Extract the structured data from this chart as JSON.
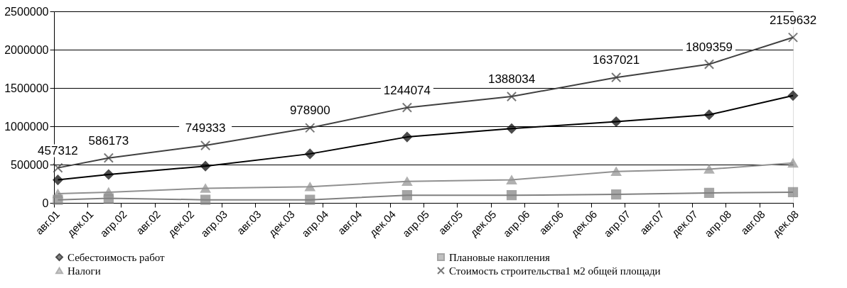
{
  "chart_data": {
    "type": "line",
    "x": [
      "2001-08-15",
      "2002-02-15",
      "2003-02-01",
      "2004-02-15",
      "2005-02-01",
      "2006-02-15",
      "2007-03-01",
      "2008-02-01",
      "2008-12-01"
    ],
    "series": [
      {
        "name": "Себестоимость работ",
        "color": "#000000",
        "marker": "diamond",
        "values": [
          300000,
          370000,
          480000,
          640000,
          860000,
          970000,
          1060000,
          1150000,
          1400000
        ]
      },
      {
        "name": "Плановые накопления",
        "color": "#808080",
        "marker": "square",
        "values": [
          40000,
          60000,
          40000,
          40000,
          100000,
          100000,
          110000,
          130000,
          140000
        ]
      },
      {
        "name": "Налоги",
        "color": "#909090",
        "marker": "triangle",
        "values": [
          120000,
          140000,
          190000,
          210000,
          280000,
          300000,
          410000,
          440000,
          520000
        ]
      },
      {
        "name": "Стоимость  строительства1 м2 общей площади",
        "color": "#404040",
        "marker": "cross",
        "values": [
          457312,
          586173,
          749333,
          978900,
          1244074,
          1388034,
          1637021,
          1809359,
          2159632
        ],
        "value_labels": [
          "457312",
          "586173",
          "749333",
          "978900",
          "1244074",
          "1388034",
          "1637021",
          "1809359",
          "2159632"
        ]
      }
    ],
    "ylim": [
      0,
      2500000
    ],
    "yticks": [
      0,
      500000,
      1000000,
      1500000,
      2000000,
      2500000
    ],
    "xlim": [
      "2001-08-01",
      "2008-12-01"
    ],
    "xticks": [
      {
        "value": "2001-08-01",
        "label": "авг.01"
      },
      {
        "value": "2001-12-01",
        "label": "дек.01"
      },
      {
        "value": "2002-04-01",
        "label": "апр.02"
      },
      {
        "value": "2002-08-01",
        "label": "авг.02"
      },
      {
        "value": "2002-12-01",
        "label": "дек.02"
      },
      {
        "value": "2003-04-01",
        "label": "апр.03"
      },
      {
        "value": "2003-08-01",
        "label": "авг.03"
      },
      {
        "value": "2003-12-01",
        "label": "дек.03"
      },
      {
        "value": "2004-04-01",
        "label": "апр.04"
      },
      {
        "value": "2004-08-01",
        "label": "авг.04"
      },
      {
        "value": "2004-12-01",
        "label": "дек.04"
      },
      {
        "value": "2005-04-01",
        "label": "апр.05"
      },
      {
        "value": "2005-08-01",
        "label": "авг.05"
      },
      {
        "value": "2005-12-01",
        "label": "дек.05"
      },
      {
        "value": "2006-04-01",
        "label": "апр.06"
      },
      {
        "value": "2006-08-01",
        "label": "авг.06"
      },
      {
        "value": "2006-12-01",
        "label": "дек.06"
      },
      {
        "value": "2007-04-01",
        "label": "апр.07"
      },
      {
        "value": "2007-08-01",
        "label": "авг.07"
      },
      {
        "value": "2007-12-01",
        "label": "дек.07"
      },
      {
        "value": "2008-04-01",
        "label": "апр.08"
      },
      {
        "value": "2008-08-01",
        "label": "авг.08"
      },
      {
        "value": "2008-12-01",
        "label": "дек.08"
      }
    ],
    "grid": "y",
    "legend": "bottom",
    "line_style": "solid"
  }
}
